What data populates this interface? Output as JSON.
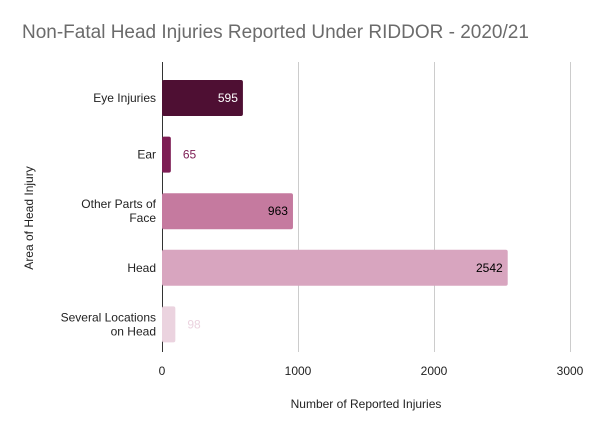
{
  "chart_data": {
    "type": "bar",
    "orientation": "horizontal",
    "title": "Non-Fatal Head Injuries Reported Under RIDDOR - 2020/21",
    "xlabel": "Number of Reported Injuries",
    "ylabel": "Area of Head Injury",
    "categories": [
      "Eye Injuries",
      "Ear",
      "Other Parts of Face",
      "Head",
      "Several Locations on Head"
    ],
    "category_lines": [
      [
        "Eye Injuries"
      ],
      [
        "Ear"
      ],
      [
        "Other Parts of",
        "Face"
      ],
      [
        "Head"
      ],
      [
        "Several Locations",
        "on Head"
      ]
    ],
    "values": [
      595,
      65,
      963,
      2542,
      98
    ],
    "value_labels": [
      "595",
      "65",
      "963",
      "2542",
      "98"
    ],
    "bar_colors": [
      "#4e0f33",
      "#7d1d54",
      "#c57a9f",
      "#d8a5bf",
      "#ebd3df"
    ],
    "label_colors": [
      "#ffffff",
      "#7d1d54",
      "#000000",
      "#000000",
      "#ebd3df"
    ],
    "label_inside": [
      true,
      false,
      true,
      true,
      false
    ],
    "xlim": [
      0,
      3000
    ],
    "xticks": [
      0,
      1000,
      2000,
      3000
    ],
    "xtick_labels": [
      "0",
      "1000",
      "2000",
      "3000"
    ],
    "grid": true,
    "legend": "none"
  }
}
